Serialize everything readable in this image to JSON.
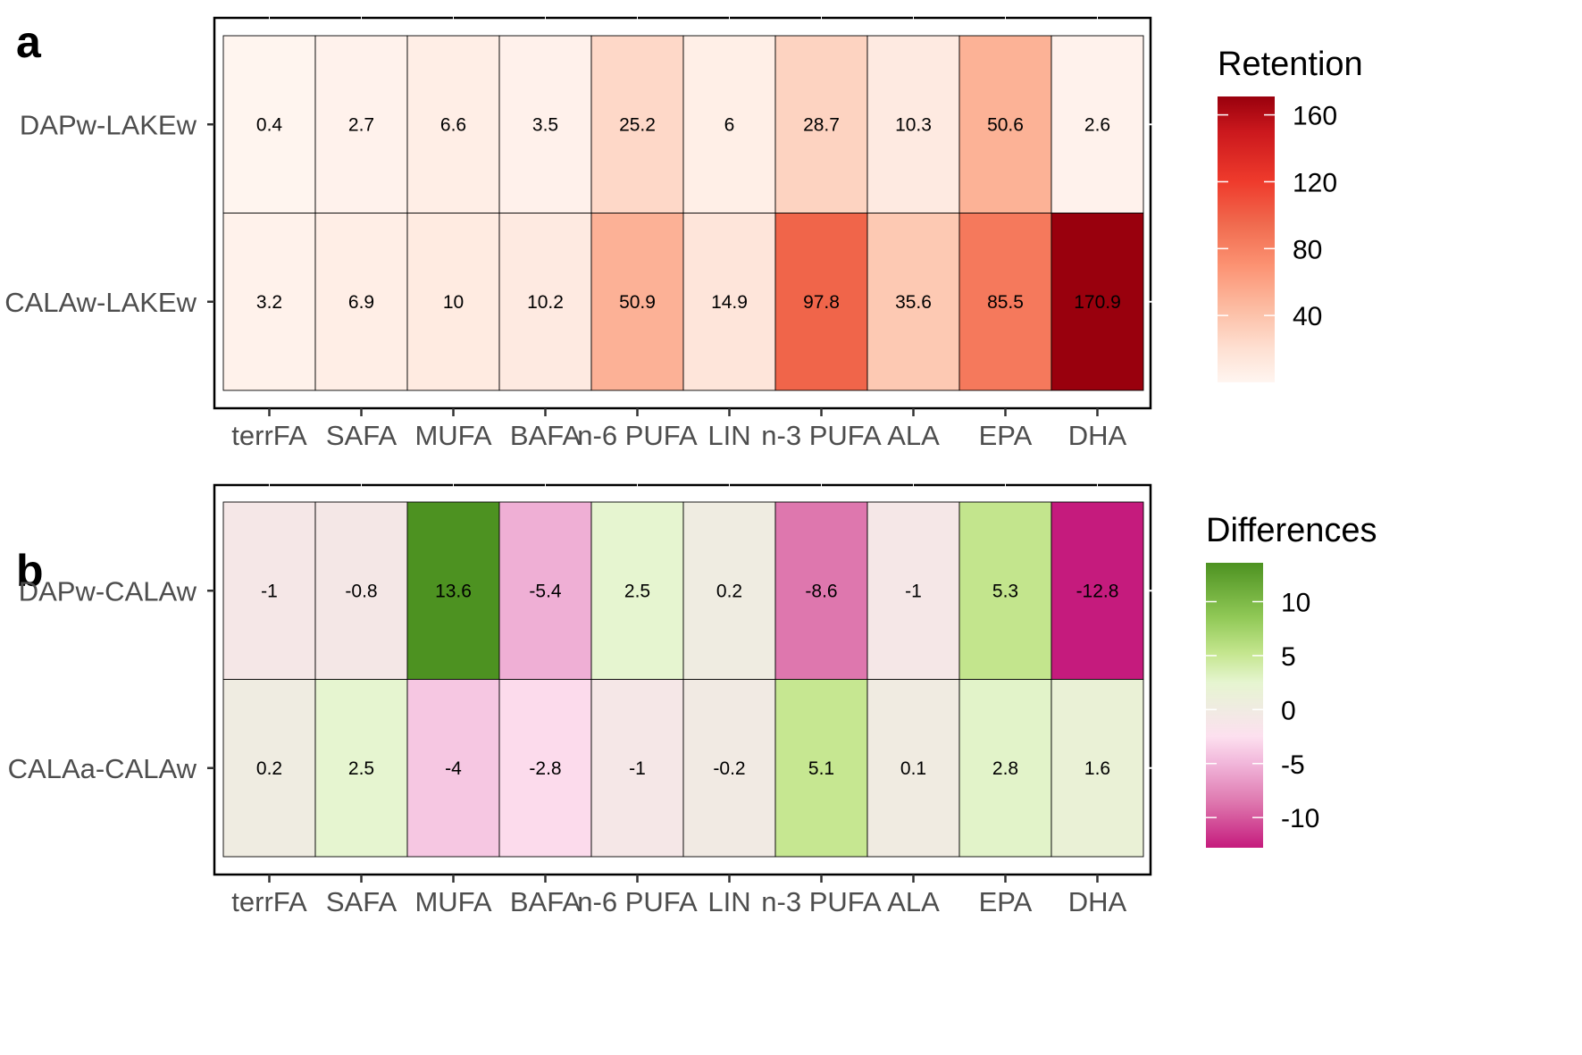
{
  "chart_data": [
    {
      "panel": "a",
      "type": "heatmap",
      "legend_title": "Retention",
      "x_categories": [
        "terrFA",
        "SAFA",
        "MUFA",
        "BAFA",
        "n-6 PUFA",
        "LIN",
        "n-3 PUFA",
        "ALA",
        "EPA",
        "DHA"
      ],
      "y_categories": [
        "DAPw-LAKEw",
        "CALAw-LAKEw"
      ],
      "values": [
        [
          0.4,
          2.7,
          6.6,
          3.5,
          25.2,
          6,
          28.7,
          10.3,
          50.6,
          2.6
        ],
        [
          3.2,
          6.9,
          10,
          10.2,
          50.9,
          14.9,
          97.8,
          35.6,
          85.5,
          170.9
        ]
      ],
      "value_labels": [
        [
          "0.4",
          "2.7",
          "6.6",
          "3.5",
          "25.2",
          "6",
          "28.7",
          "10.3",
          "50.6",
          "2.6"
        ],
        [
          "3.2",
          "6.9",
          "10",
          "10.2",
          "50.9",
          "14.9",
          "97.8",
          "35.6",
          "85.5",
          "170.9"
        ]
      ],
      "color_scale": {
        "type": "sequential",
        "domain": [
          0.4,
          170.9
        ],
        "stops": [
          {
            "v": 0,
            "color": "#fff5f0"
          },
          {
            "v": 20,
            "color": "#fee0d2"
          },
          {
            "v": 45,
            "color": "#fcbba1"
          },
          {
            "v": 70,
            "color": "#fc9272"
          },
          {
            "v": 95,
            "color": "#f06a4e"
          },
          {
            "v": 120,
            "color": "#ef3b2c"
          },
          {
            "v": 150,
            "color": "#cb181d"
          },
          {
            "v": 171,
            "color": "#99000d"
          }
        ]
      },
      "legend_ticks": [
        40,
        80,
        120,
        160
      ],
      "legend_tick_labels": [
        "40",
        "80",
        "120",
        "160"
      ]
    },
    {
      "panel": "b",
      "type": "heatmap",
      "legend_title": "Differences",
      "x_categories": [
        "terrFA",
        "SAFA",
        "MUFA",
        "BAFA",
        "n-6 PUFA",
        "LIN",
        "n-3 PUFA",
        "ALA",
        "EPA",
        "DHA"
      ],
      "y_categories": [
        "DAPw-CALAw",
        "CALAa-CALAw"
      ],
      "values": [
        [
          -1,
          -0.8,
          13.6,
          -5.4,
          2.5,
          0.2,
          -8.6,
          -1,
          5.3,
          -12.8
        ],
        [
          0.2,
          2.5,
          -4,
          -2.8,
          -1,
          -0.2,
          5.1,
          0.1,
          2.8,
          1.6
        ]
      ],
      "value_labels": [
        [
          "-1",
          "-0.8",
          "13.6",
          "-5.4",
          "2.5",
          "0.2",
          "-8.6",
          "-1",
          "5.3",
          "-12.8"
        ],
        [
          "0.2",
          "2.5",
          "-4",
          "-2.8",
          "-1",
          "-0.2",
          "5.1",
          "0.1",
          "2.8",
          "1.6"
        ]
      ],
      "color_scale": {
        "type": "diverging",
        "domain": [
          -12.8,
          13.6
        ],
        "stops": [
          {
            "v": -12.8,
            "color": "#c51b7d"
          },
          {
            "v": -8.6,
            "color": "#de77ae"
          },
          {
            "v": -5,
            "color": "#f1b6da"
          },
          {
            "v": -2.5,
            "color": "#fde0ef"
          },
          {
            "v": 0,
            "color": "#f0ebe2"
          },
          {
            "v": 2.5,
            "color": "#e6f5d0"
          },
          {
            "v": 5.2,
            "color": "#c5e68f"
          },
          {
            "v": 8.5,
            "color": "#91c957"
          },
          {
            "v": 13.6,
            "color": "#4d9221"
          }
        ]
      },
      "legend_ticks": [
        -10,
        -5,
        0,
        5,
        10
      ],
      "legend_tick_labels": [
        "-10",
        "-5",
        "0",
        "5",
        "10"
      ]
    }
  ]
}
